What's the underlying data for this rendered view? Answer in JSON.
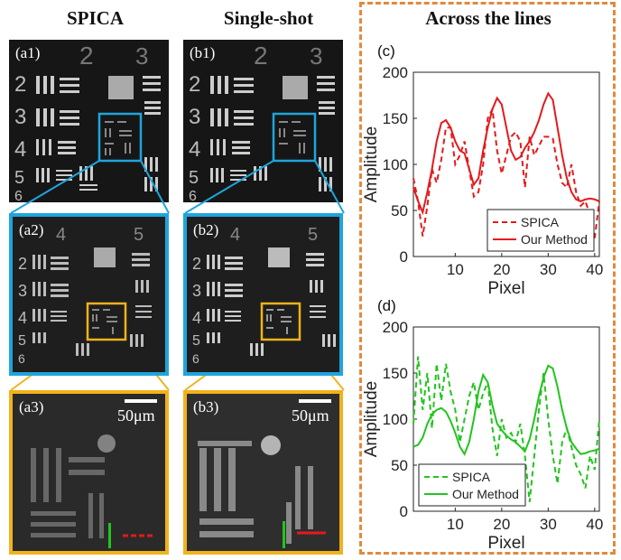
{
  "columns": {
    "spica": "SPICA",
    "single_shot": "Single-shot",
    "across": "Across the lines"
  },
  "panels": {
    "a1": "(a1)",
    "a2": "(a2)",
    "a3": "(a3)",
    "b1": "(b1)",
    "b2": "(b2)",
    "b3": "(b3)",
    "c": "(c)",
    "d": "(d)"
  },
  "scalebar_label": "50μm",
  "colors": {
    "zoom1": "#1ea5dc",
    "zoom2": "#f2b21b",
    "frame": "#e08a3c",
    "red": "#e41a1c",
    "green": "#22c41e"
  },
  "chart_data": [
    {
      "type": "line",
      "panel": "(c)",
      "xlabel": "Pixel",
      "ylabel": "Amplitude",
      "xlim": [
        1,
        41
      ],
      "ylim": [
        0,
        200
      ],
      "xticks": [
        10,
        20,
        30,
        40
      ],
      "yticks": [
        0,
        50,
        100,
        150,
        200
      ],
      "legend_position": "bottom-right",
      "series": [
        {
          "name": "SPICA",
          "style": "dashed",
          "color": "#e41a1c",
          "x": [
            1,
            2,
            3,
            4,
            5,
            6,
            7,
            8,
            9,
            10,
            11,
            12,
            13,
            14,
            15,
            16,
            17,
            18,
            19,
            20,
            21,
            22,
            23,
            24,
            25,
            26,
            27,
            28,
            29,
            30,
            31,
            32,
            33,
            34,
            35,
            36,
            37,
            38,
            39,
            40,
            41
          ],
          "values": [
            85,
            60,
            22,
            55,
            95,
            80,
            105,
            140,
            140,
            100,
            110,
            125,
            95,
            65,
            70,
            100,
            150,
            160,
            115,
            90,
            110,
            130,
            135,
            125,
            75,
            130,
            110,
            120,
            130,
            130,
            128,
            100,
            80,
            75,
            100,
            70,
            55,
            60,
            45,
            20,
            60
          ]
        },
        {
          "name": "Our Method",
          "style": "solid",
          "color": "#e41a1c",
          "x": [
            1,
            2,
            3,
            4,
            5,
            6,
            7,
            8,
            9,
            10,
            11,
            12,
            13,
            14,
            15,
            16,
            17,
            18,
            19,
            20,
            21,
            22,
            23,
            24,
            25,
            26,
            27,
            28,
            29,
            30,
            31,
            32,
            33,
            34,
            35,
            36,
            37,
            38,
            39,
            40,
            41
          ],
          "values": [
            75,
            60,
            48,
            70,
            95,
            125,
            145,
            148,
            140,
            125,
            115,
            112,
            95,
            78,
            85,
            115,
            140,
            160,
            172,
            165,
            140,
            115,
            105,
            108,
            118,
            125,
            135,
            148,
            165,
            177,
            170,
            140,
            110,
            85,
            70,
            62,
            60,
            62,
            63,
            62,
            60
          ]
        }
      ]
    },
    {
      "type": "line",
      "panel": "(d)",
      "xlabel": "Pixel",
      "ylabel": "Amplitude",
      "xlim": [
        1,
        41
      ],
      "ylim": [
        0,
        200
      ],
      "xticks": [
        10,
        20,
        30,
        40
      ],
      "yticks": [
        0,
        50,
        100,
        150,
        200
      ],
      "legend_position": "bottom-left",
      "series": [
        {
          "name": "SPICA",
          "style": "dashed",
          "color": "#22c41e",
          "x": [
            1,
            2,
            3,
            4,
            5,
            6,
            7,
            8,
            9,
            10,
            11,
            12,
            13,
            14,
            15,
            16,
            17,
            18,
            19,
            20,
            21,
            22,
            23,
            24,
            25,
            26,
            27,
            28,
            29,
            30,
            31,
            32,
            33,
            34,
            35,
            36,
            37,
            38,
            39,
            40,
            41
          ],
          "values": [
            95,
            168,
            110,
            150,
            90,
            160,
            120,
            160,
            130,
            110,
            75,
            100,
            125,
            140,
            110,
            128,
            140,
            90,
            60,
            100,
            80,
            85,
            75,
            95,
            60,
            10,
            60,
            110,
            150,
            100,
            60,
            30,
            75,
            90,
            70,
            50,
            40,
            25,
            60,
            45,
            100
          ]
        },
        {
          "name": "Our Method",
          "style": "solid",
          "color": "#22c41e",
          "x": [
            1,
            2,
            3,
            4,
            5,
            6,
            7,
            8,
            9,
            10,
            11,
            12,
            13,
            14,
            15,
            16,
            17,
            18,
            19,
            20,
            21,
            22,
            23,
            24,
            25,
            26,
            27,
            28,
            29,
            30,
            31,
            32,
            33,
            34,
            35,
            36,
            37,
            38,
            39,
            40,
            41
          ],
          "values": [
            70,
            72,
            80,
            95,
            105,
            110,
            112,
            108,
            98,
            85,
            70,
            62,
            75,
            100,
            130,
            148,
            140,
            115,
            95,
            88,
            82,
            78,
            75,
            70,
            65,
            78,
            100,
            125,
            145,
            158,
            155,
            135,
            110,
            90,
            75,
            68,
            62,
            63,
            65,
            66,
            68
          ]
        }
      ]
    }
  ]
}
